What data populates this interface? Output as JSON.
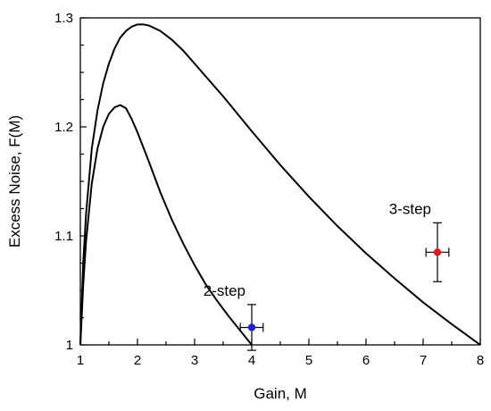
{
  "chart_data": {
    "type": "line",
    "title": "",
    "xlabel": "Gain, M",
    "ylabel": "Excess Noise, F(M)",
    "xlim": [
      1,
      8
    ],
    "ylim": [
      1.0,
      1.3
    ],
    "grid": false,
    "x_ticks": [
      {
        "value": 1,
        "label": "1"
      },
      {
        "value": 2,
        "label": "2"
      },
      {
        "value": 3,
        "label": "3"
      },
      {
        "value": 4,
        "label": "4"
      },
      {
        "value": 5,
        "label": "5"
      },
      {
        "value": 6,
        "label": "6"
      },
      {
        "value": 7,
        "label": "7"
      },
      {
        "value": 8,
        "label": "8"
      }
    ],
    "y_ticks": [
      {
        "value": 1.0,
        "label": "1"
      },
      {
        "value": 1.1,
        "label": "1.1"
      },
      {
        "value": 1.2,
        "label": "1.2"
      },
      {
        "value": 1.3,
        "label": "1.3"
      }
    ],
    "series": [
      {
        "points": [
          [
            1.0,
            1.0
          ],
          [
            1.05,
            1.055
          ],
          [
            1.1,
            1.095
          ],
          [
            1.2,
            1.148
          ],
          [
            1.3,
            1.18
          ],
          [
            1.4,
            1.2
          ],
          [
            1.5,
            1.212
          ],
          [
            1.6,
            1.218
          ],
          [
            1.7,
            1.22
          ],
          [
            1.8,
            1.217
          ],
          [
            1.9,
            1.207
          ],
          [
            2.0,
            1.195
          ],
          [
            2.2,
            1.168
          ],
          [
            2.4,
            1.14
          ],
          [
            2.6,
            1.115
          ],
          [
            2.8,
            1.093
          ],
          [
            3.0,
            1.073
          ],
          [
            3.2,
            1.055
          ],
          [
            3.4,
            1.04
          ],
          [
            3.6,
            1.026
          ],
          [
            3.8,
            1.013
          ],
          [
            4.0,
            1.0
          ]
        ]
      },
      {
        "points": [
          [
            1.0,
            1.0
          ],
          [
            1.05,
            1.075
          ],
          [
            1.1,
            1.12
          ],
          [
            1.2,
            1.18
          ],
          [
            1.3,
            1.215
          ],
          [
            1.4,
            1.24
          ],
          [
            1.5,
            1.258
          ],
          [
            1.6,
            1.272
          ],
          [
            1.7,
            1.282
          ],
          [
            1.8,
            1.288
          ],
          [
            1.9,
            1.292
          ],
          [
            2.0,
            1.294
          ],
          [
            2.1,
            1.294
          ],
          [
            2.2,
            1.293
          ],
          [
            2.4,
            1.288
          ],
          [
            2.6,
            1.28
          ],
          [
            2.8,
            1.27
          ],
          [
            3.0,
            1.258
          ],
          [
            3.5,
            1.228
          ],
          [
            4.0,
            1.196
          ],
          [
            4.5,
            1.165
          ],
          [
            5.0,
            1.136
          ],
          [
            5.5,
            1.109
          ],
          [
            6.0,
            1.084
          ],
          [
            6.5,
            1.061
          ],
          [
            7.0,
            1.039
          ],
          [
            7.5,
            1.019
          ],
          [
            8.0,
            1.0
          ]
        ]
      }
    ],
    "measurements": [
      {
        "label": "2-step",
        "x": 4.0,
        "y": 1.016,
        "x_err": 0.2,
        "y_err": 0.021,
        "color": "#1f1fd6"
      },
      {
        "label": "3-step",
        "x": 7.25,
        "y": 1.085,
        "x_err": 0.2,
        "y_err": 0.027,
        "color": "#e31a1c"
      }
    ]
  }
}
